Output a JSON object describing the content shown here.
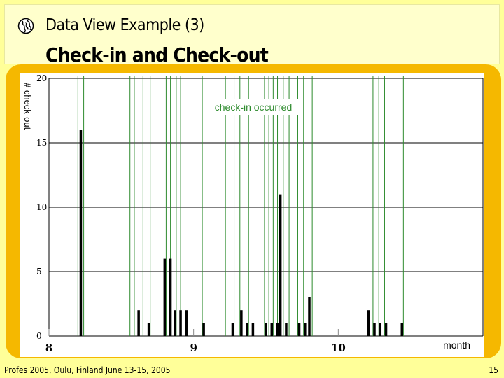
{
  "slide": {
    "subtitle": "Data View Example (3)",
    "title": "Check-in and Check-out",
    "footer": "Profes 2005, Oulu, Finland June 13-15, 2005",
    "page_number": "15",
    "icon": "globe-icon"
  },
  "colors": {
    "background": "#FFFF99",
    "frame": "#F5B800",
    "checkin_line": "#2E8B2E",
    "bar": "#000000",
    "grid": "#000000"
  },
  "chart_data": {
    "type": "bar",
    "title": "",
    "ylabel": "# check-out",
    "xlabel": "month",
    "annotation": "check-in occurred",
    "ylim": [
      0,
      20
    ],
    "yticks": [
      0,
      5,
      10,
      15,
      20
    ],
    "xlim": [
      8.0,
      11.0
    ],
    "xticks": [
      8,
      9,
      10
    ],
    "grid_horizontal": true,
    "series": [
      {
        "name": "check-out",
        "x": [
          8.22,
          8.62,
          8.69,
          8.8,
          8.84,
          8.87,
          8.91,
          8.95,
          9.07,
          9.27,
          9.33,
          9.37,
          9.41,
          9.5,
          9.54,
          9.58,
          9.6,
          9.64,
          9.73,
          9.77,
          9.8,
          10.21,
          10.25,
          10.29,
          10.33,
          10.44
        ],
        "values": [
          16,
          2,
          1,
          6,
          6,
          2,
          2,
          2,
          1,
          1,
          2,
          1,
          1,
          1,
          1,
          1,
          11,
          1,
          1,
          1,
          3,
          2,
          1,
          1,
          1,
          1
        ]
      },
      {
        "name": "check-in occurred",
        "x": [
          8.2,
          8.24,
          8.56,
          8.59,
          8.65,
          8.7,
          8.81,
          8.84,
          8.88,
          8.91,
          9.06,
          9.22,
          9.28,
          9.32,
          9.38,
          9.49,
          9.52,
          9.55,
          9.58,
          9.62,
          9.66,
          9.72,
          9.76,
          9.82,
          10.24,
          10.28,
          10.32,
          10.45
        ]
      }
    ]
  }
}
